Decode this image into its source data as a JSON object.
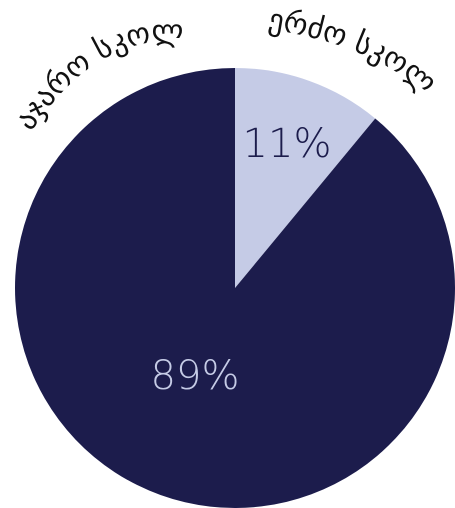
{
  "chart_data": {
    "type": "pie",
    "title": "",
    "start_angle_deg": 0,
    "direction": "clockwise",
    "slices": [
      {
        "label": "ჯერძო სკოლა",
        "value": 11,
        "value_label": "11%",
        "color": "#c5cbe6",
        "label_color": "#1c1c4c"
      },
      {
        "label": "საჯარო სკოლა",
        "value": 89,
        "value_label": "89%",
        "color": "#1c1c4c",
        "label_color": "#c5cbe6"
      }
    ]
  }
}
